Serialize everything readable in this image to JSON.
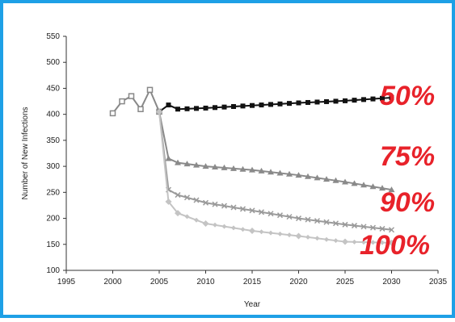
{
  "chart_data": {
    "type": "line",
    "title": "",
    "xlabel": "Year",
    "ylabel": "Number of New Infections",
    "xlim": [
      1995,
      2035
    ],
    "ylim": [
      100,
      550
    ],
    "xticks": [
      1995,
      2000,
      2005,
      2010,
      2015,
      2020,
      2025,
      2030,
      2035
    ],
    "yticks": [
      100,
      150,
      200,
      250,
      300,
      350,
      400,
      450,
      500,
      550
    ],
    "grid": false,
    "frame_color": "#1ea0e6",
    "historical": {
      "x": [
        2000,
        2001,
        2002,
        2003,
        2004,
        2005
      ],
      "y": [
        402,
        425,
        435,
        410,
        447,
        405
      ],
      "color": "#888888"
    },
    "series": [
      {
        "name": "50%",
        "color": "#111111",
        "x": [
          2005,
          2006,
          2007,
          2010,
          2015,
          2020,
          2025,
          2030
        ],
        "y": [
          405,
          418,
          410,
          412,
          417,
          422,
          426,
          432
        ]
      },
      {
        "name": "75%",
        "color": "#8a8a8a",
        "x": [
          2005,
          2006,
          2007,
          2010,
          2015,
          2020,
          2025,
          2030
        ],
        "y": [
          405,
          315,
          307,
          300,
          293,
          283,
          270,
          255
        ]
      },
      {
        "name": "90%",
        "color": "#9a9a9a",
        "x": [
          2005,
          2006,
          2007,
          2010,
          2015,
          2020,
          2025,
          2030
        ],
        "y": [
          405,
          255,
          245,
          230,
          215,
          200,
          188,
          178
        ]
      },
      {
        "name": "100%",
        "color": "#c4c4c4",
        "x": [
          2005,
          2006,
          2007,
          2010,
          2015,
          2020,
          2025,
          2030
        ],
        "y": [
          405,
          232,
          210,
          190,
          176,
          166,
          155,
          153
        ]
      }
    ]
  }
}
